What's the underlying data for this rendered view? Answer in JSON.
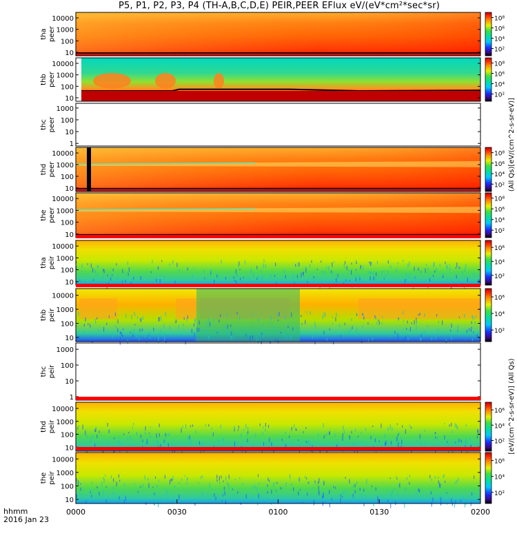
{
  "title": "P5, P1, P2, P3, P4 (TH-A,B,C,D,E) PEIR,PEER EFlux eV/(eV*cm²*sec*sr)",
  "time_axis": {
    "label_line1": "hhmm",
    "label_line2": "2016 Jan 23",
    "ticks": [
      "0000",
      "0030",
      "0100",
      "0130",
      "0200"
    ]
  },
  "colorbar_unit_peer": "(All Qs)[eV/(cm^2-s-sr-eV)]",
  "colorbar_unit_peir": "[eV/(cm^2-s-sr-eV)] (All Qs)",
  "chart_data": {
    "type": "heatmap",
    "x_range": [
      "0000",
      "0200"
    ],
    "y_scale": "log",
    "ylim": [
      5,
      30000
    ],
    "panels": [
      {
        "id": "tha-peer",
        "ylabel": [
          "tha",
          "peer"
        ],
        "yticks": [
          "10",
          "100",
          "1000",
          "10000"
        ],
        "colorbar_ticks": [
          "10²",
          "10⁴",
          "10⁶",
          "10⁸"
        ],
        "has_data": true,
        "palette": "hot"
      },
      {
        "id": "thb-peer",
        "ylabel": [
          "thb",
          "peer"
        ],
        "yticks": [
          "10",
          "100",
          "1000",
          "10000"
        ],
        "colorbar_ticks": [
          "10²",
          "10⁴",
          "10⁶",
          "10⁸"
        ],
        "has_data": true,
        "palette": "thb-peer"
      },
      {
        "id": "thc-peer",
        "ylabel": [
          "thc",
          "peer"
        ],
        "yticks": [
          "1",
          "10",
          "100",
          "1000"
        ],
        "colorbar_ticks": [],
        "has_data": false,
        "palette": "none"
      },
      {
        "id": "thd-peer",
        "ylabel": [
          "thd",
          "peer"
        ],
        "yticks": [
          "10",
          "100",
          "1000",
          "10000"
        ],
        "colorbar_ticks": [
          "10²",
          "10⁴",
          "10⁶",
          "10⁸"
        ],
        "has_data": true,
        "palette": "hot"
      },
      {
        "id": "the-peer",
        "ylabel": [
          "the",
          "peer"
        ],
        "yticks": [
          "10",
          "100",
          "1000",
          "10000"
        ],
        "colorbar_ticks": [
          "10²",
          "10⁴",
          "10⁶",
          "10⁸"
        ],
        "has_data": true,
        "palette": "hot"
      },
      {
        "id": "tha-peir",
        "ylabel": [
          "tha",
          "peir"
        ],
        "yticks": [
          "10",
          "100",
          "1000",
          "10000"
        ],
        "colorbar_ticks": [
          "10²",
          "10⁴",
          "10⁶"
        ],
        "has_data": true,
        "palette": "ion"
      },
      {
        "id": "thb-peir",
        "ylabel": [
          "thb",
          "peir"
        ],
        "yticks": [
          "10",
          "100",
          "1000",
          "10000"
        ],
        "colorbar_ticks": [
          "10²",
          "10⁴",
          "10⁶"
        ],
        "has_data": true,
        "palette": "thb-peir"
      },
      {
        "id": "thc-peir",
        "ylabel": [
          "thc",
          "peir"
        ],
        "yticks": [
          "1",
          "10",
          "100",
          "1000"
        ],
        "colorbar_ticks": [],
        "has_data": false,
        "palette": "none"
      },
      {
        "id": "thd-peir",
        "ylabel": [
          "thd",
          "peir"
        ],
        "yticks": [
          "10",
          "100",
          "1000",
          "10000"
        ],
        "colorbar_ticks": [
          "10²",
          "10⁴",
          "10⁶"
        ],
        "has_data": true,
        "palette": "ion"
      },
      {
        "id": "the-peir",
        "ylabel": [
          "the",
          "peir"
        ],
        "yticks": [
          "10",
          "100",
          "1000",
          "10000"
        ],
        "colorbar_ticks": [
          "10²",
          "10⁴",
          "10⁶"
        ],
        "has_data": true,
        "palette": "ion"
      }
    ]
  }
}
